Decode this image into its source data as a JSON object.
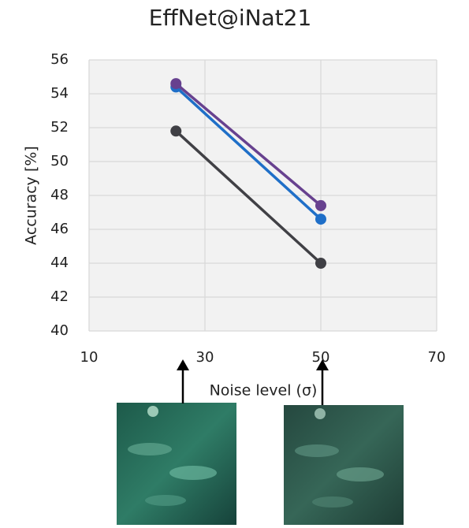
{
  "chart_data": {
    "type": "line",
    "title": "EffNet@iNat21",
    "x_label": "Noise level (σ)",
    "y_label": "Accuracy [%]",
    "x": [
      25,
      50
    ],
    "series": [
      {
        "color": "#404045",
        "values": [
          51.8,
          44.0
        ]
      },
      {
        "color": "#1f6fc8",
        "values": [
          54.4,
          46.6
        ]
      },
      {
        "color": "#67418f",
        "values": [
          54.6,
          47.4
        ]
      }
    ],
    "xlim": [
      10,
      70
    ],
    "xticks": [
      10,
      30,
      50,
      70
    ],
    "ylim": [
      40,
      56
    ],
    "yticks": [
      40,
      42,
      44,
      46,
      48,
      50,
      52,
      54,
      56
    ],
    "grid": true
  }
}
